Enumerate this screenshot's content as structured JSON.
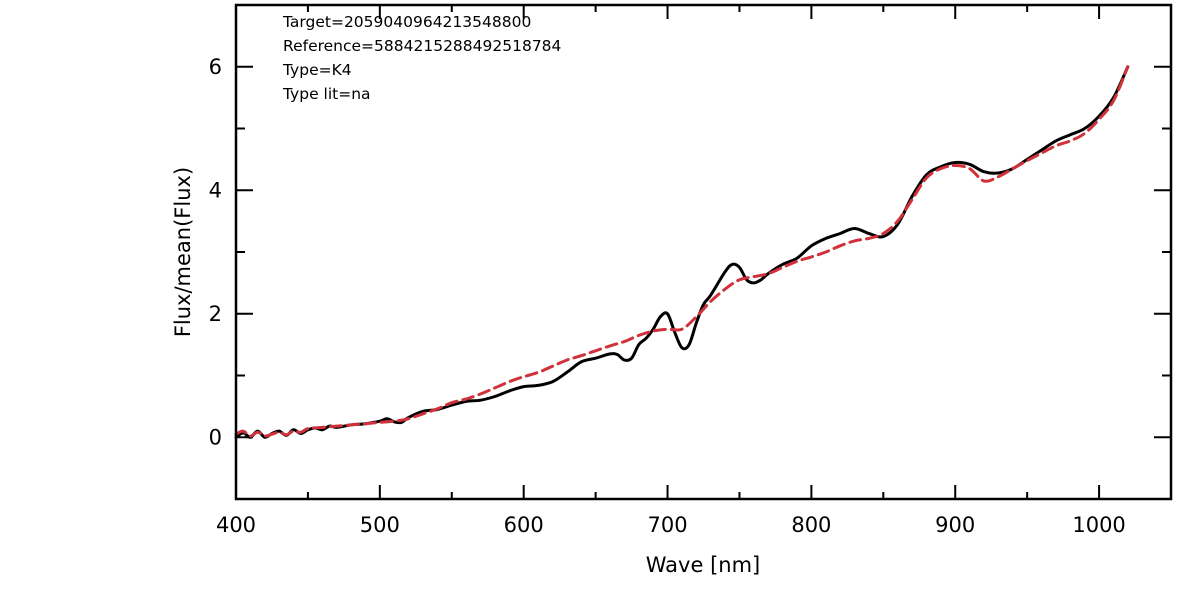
{
  "chart_data": {
    "type": "line",
    "title": "",
    "xlabel": "Wave [nm]",
    "ylabel": "Flux/mean(Flux)",
    "xlim": [
      400,
      1050
    ],
    "ylim": [
      -1,
      7
    ],
    "x_ticks": [
      400,
      500,
      600,
      700,
      800,
      900,
      1000
    ],
    "y_ticks": [
      0,
      2,
      4,
      6
    ],
    "grid": false,
    "legend": "none",
    "annotations": [
      "Target=2059040964213548800",
      "Reference=5884215288492518784",
      "Type=K4",
      "Type lit=na"
    ],
    "series": [
      {
        "color": "#000000",
        "style": "solid",
        "x": [
          400,
          405,
          410,
          415,
          420,
          425,
          430,
          435,
          440,
          445,
          450,
          455,
          460,
          465,
          470,
          480,
          490,
          500,
          505,
          510,
          515,
          520,
          530,
          540,
          550,
          560,
          570,
          580,
          590,
          600,
          610,
          620,
          630,
          640,
          650,
          660,
          665,
          670,
          675,
          680,
          685,
          690,
          695,
          700,
          705,
          710,
          715,
          720,
          725,
          730,
          740,
          745,
          750,
          755,
          760,
          765,
          770,
          780,
          790,
          800,
          810,
          820,
          830,
          840,
          850,
          860,
          870,
          880,
          890,
          900,
          910,
          920,
          930,
          940,
          950,
          960,
          970,
          980,
          990,
          1000,
          1010,
          1020
        ],
        "values": [
          0.0,
          0.07,
          0.0,
          0.1,
          0.0,
          0.06,
          0.1,
          0.03,
          0.12,
          0.06,
          0.12,
          0.15,
          0.12,
          0.18,
          0.16,
          0.2,
          0.22,
          0.26,
          0.3,
          0.25,
          0.24,
          0.32,
          0.42,
          0.45,
          0.52,
          0.58,
          0.6,
          0.66,
          0.75,
          0.82,
          0.84,
          0.9,
          1.05,
          1.22,
          1.28,
          1.35,
          1.34,
          1.25,
          1.28,
          1.5,
          1.6,
          1.75,
          1.95,
          2.0,
          1.7,
          1.45,
          1.5,
          1.85,
          2.15,
          2.3,
          2.68,
          2.8,
          2.75,
          2.55,
          2.5,
          2.55,
          2.65,
          2.8,
          2.9,
          3.1,
          3.22,
          3.3,
          3.38,
          3.3,
          3.25,
          3.45,
          3.9,
          4.25,
          4.38,
          4.45,
          4.42,
          4.3,
          4.28,
          4.35,
          4.5,
          4.65,
          4.8,
          4.9,
          5.0,
          5.2,
          5.5,
          6.0
        ]
      },
      {
        "color": "#d0313b",
        "style": "dashed",
        "x": [
          400,
          405,
          410,
          415,
          420,
          425,
          430,
          435,
          440,
          445,
          450,
          460,
          470,
          480,
          490,
          500,
          510,
          520,
          530,
          540,
          550,
          560,
          570,
          580,
          590,
          600,
          610,
          620,
          630,
          640,
          650,
          660,
          670,
          680,
          690,
          700,
          710,
          720,
          730,
          740,
          750,
          760,
          770,
          780,
          790,
          800,
          810,
          820,
          830,
          840,
          850,
          860,
          870,
          880,
          890,
          900,
          910,
          920,
          930,
          940,
          950,
          960,
          970,
          980,
          990,
          1000,
          1010,
          1020
        ],
        "values": [
          0.05,
          0.1,
          0.02,
          0.08,
          0.02,
          0.05,
          0.08,
          0.04,
          0.1,
          0.08,
          0.14,
          0.16,
          0.18,
          0.2,
          0.22,
          0.24,
          0.26,
          0.3,
          0.38,
          0.46,
          0.56,
          0.62,
          0.7,
          0.8,
          0.9,
          0.98,
          1.05,
          1.15,
          1.25,
          1.32,
          1.4,
          1.48,
          1.55,
          1.65,
          1.72,
          1.75,
          1.75,
          1.95,
          2.2,
          2.4,
          2.55,
          2.6,
          2.65,
          2.75,
          2.85,
          2.92,
          3.0,
          3.1,
          3.18,
          3.22,
          3.3,
          3.5,
          3.85,
          4.2,
          4.35,
          4.4,
          4.35,
          4.15,
          4.22,
          4.35,
          4.48,
          4.6,
          4.72,
          4.8,
          4.92,
          5.15,
          5.45,
          6.0
        ]
      }
    ]
  }
}
